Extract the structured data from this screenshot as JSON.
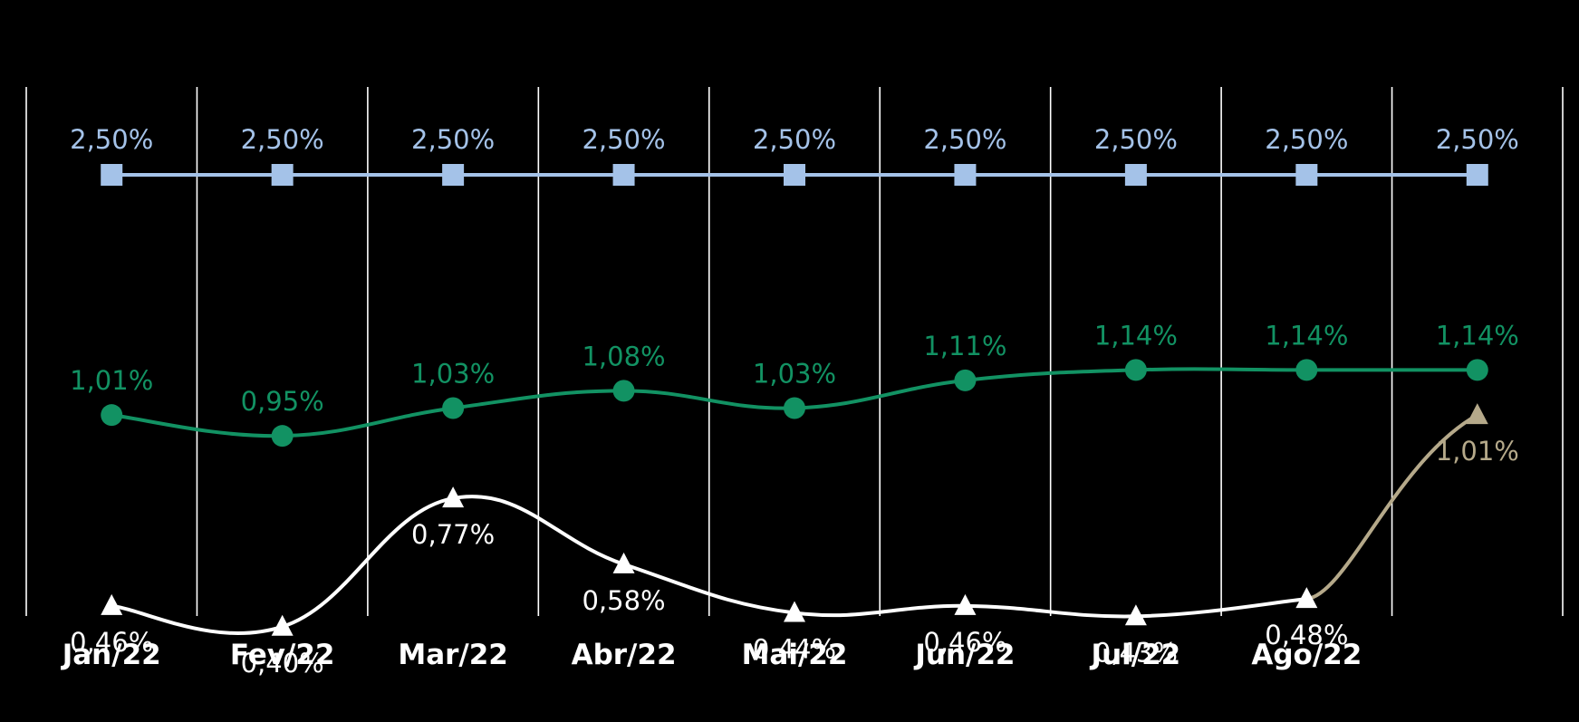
{
  "chart_data": {
    "type": "line",
    "categories": [
      "Jan/22",
      "Fev/22",
      "Mar/22",
      "Abr/22",
      "Mai/22",
      "Jun/22",
      "Jul/22",
      "Ago/22",
      ""
    ],
    "grid": "vertical lines",
    "series": [
      {
        "key": "s1",
        "marker": "square",
        "color": "#a4c2e8",
        "values": [
          2.5,
          2.5,
          2.5,
          2.5,
          2.5,
          2.5,
          2.5,
          2.5,
          2.5
        ],
        "labels": [
          "2,50%",
          "2,50%",
          "2,50%",
          "2,50%",
          "2,50%",
          "2,50%",
          "2,50%",
          "2,50%",
          "2,50%"
        ]
      },
      {
        "key": "s2",
        "marker": "circle",
        "color": "#129263",
        "values": [
          1.01,
          0.95,
          1.03,
          1.08,
          1.03,
          1.11,
          1.14,
          1.14,
          1.14
        ],
        "labels": [
          "1,01%",
          "0,95%",
          "1,03%",
          "1,08%",
          "1,03%",
          "1,11%",
          "1,14%",
          "1,14%",
          "1,14%"
        ]
      },
      {
        "key": "s3",
        "marker": "triangle",
        "color": "#ffffff",
        "projection_color": "#b5a98a",
        "values": [
          0.46,
          0.4,
          0.77,
          0.58,
          0.44,
          0.46,
          0.43,
          0.48,
          1.01
        ],
        "labels": [
          "0,46%",
          "0,40%",
          "0,77%",
          "0,58%",
          "0,44%",
          "0,46%",
          "0,43%",
          "0,48%",
          "1,01%"
        ]
      }
    ]
  }
}
